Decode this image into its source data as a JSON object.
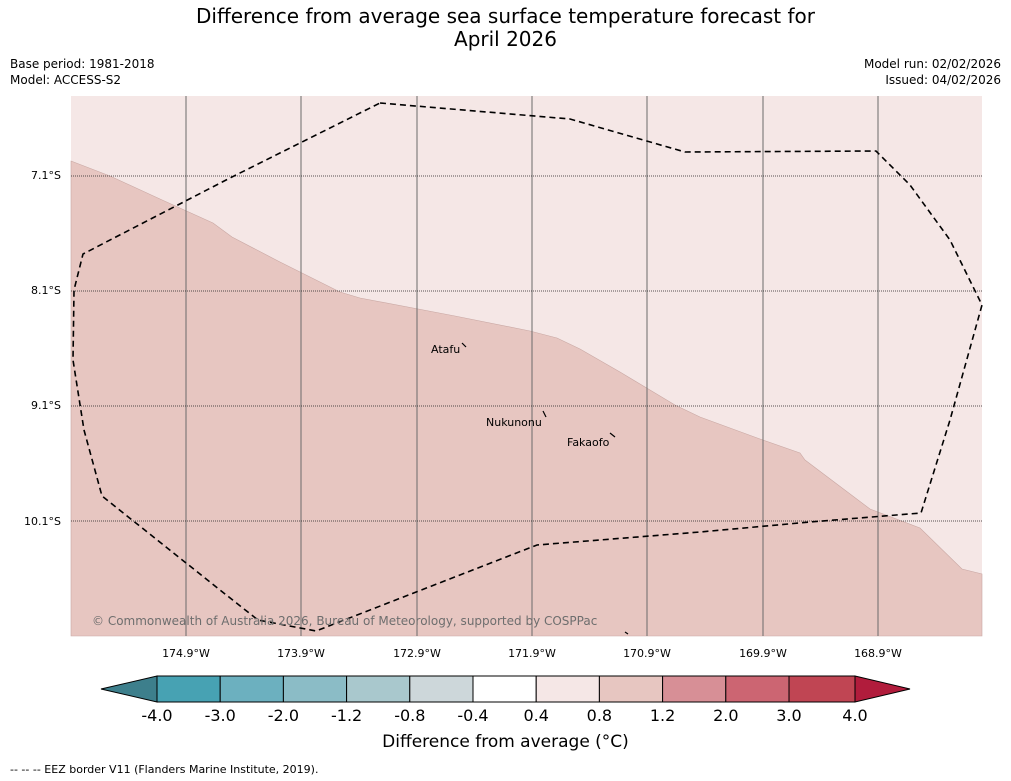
{
  "title": {
    "line1": "Difference from average sea surface temperature forecast for",
    "line2": "April 2026"
  },
  "meta": {
    "base_period": "Base period: 1981-2018",
    "model": "Model: ACCESS-S2",
    "model_run": "Model run: 02/02/2026",
    "issued": "Issued: 04/02/2026"
  },
  "map": {
    "latitudes": [
      "7.1°S",
      "8.1°S",
      "9.1°S",
      "10.1°S"
    ],
    "longitudes": [
      "174.9°W",
      "173.9°W",
      "172.9°W",
      "171.9°W",
      "170.9°W",
      "169.9°W",
      "168.9°W"
    ],
    "places": [
      {
        "name": "Atafu"
      },
      {
        "name": "Nukunonu"
      },
      {
        "name": "Fakaofo"
      }
    ],
    "copyright": "© Commonwealth of Australia 2026, Bureau of Meteorology, supported by COSPPac",
    "colors": {
      "region_light": "#f5e7e6",
      "region_dark": "#e7c6c1"
    }
  },
  "colorbar": {
    "ticks": [
      "-4.0",
      "-3.0",
      "-2.0",
      "-1.2",
      "-0.8",
      "-0.4",
      "0.4",
      "0.8",
      "1.2",
      "2.0",
      "3.0",
      "4.0"
    ],
    "colors": [
      "#3d7f8c",
      "#47a2b3",
      "#6cb0bf",
      "#8bbcc6",
      "#a9c8cd",
      "#cdd7da",
      "#ffffff",
      "#f5e7e6",
      "#e7c6c1",
      "#d78f96",
      "#cc6572",
      "#c04553",
      "#b11c3c"
    ],
    "title": "Difference from average (°C)"
  },
  "footnote": "--  --  -- EEZ border V11 (Flanders Marine Institute, 2019)."
}
